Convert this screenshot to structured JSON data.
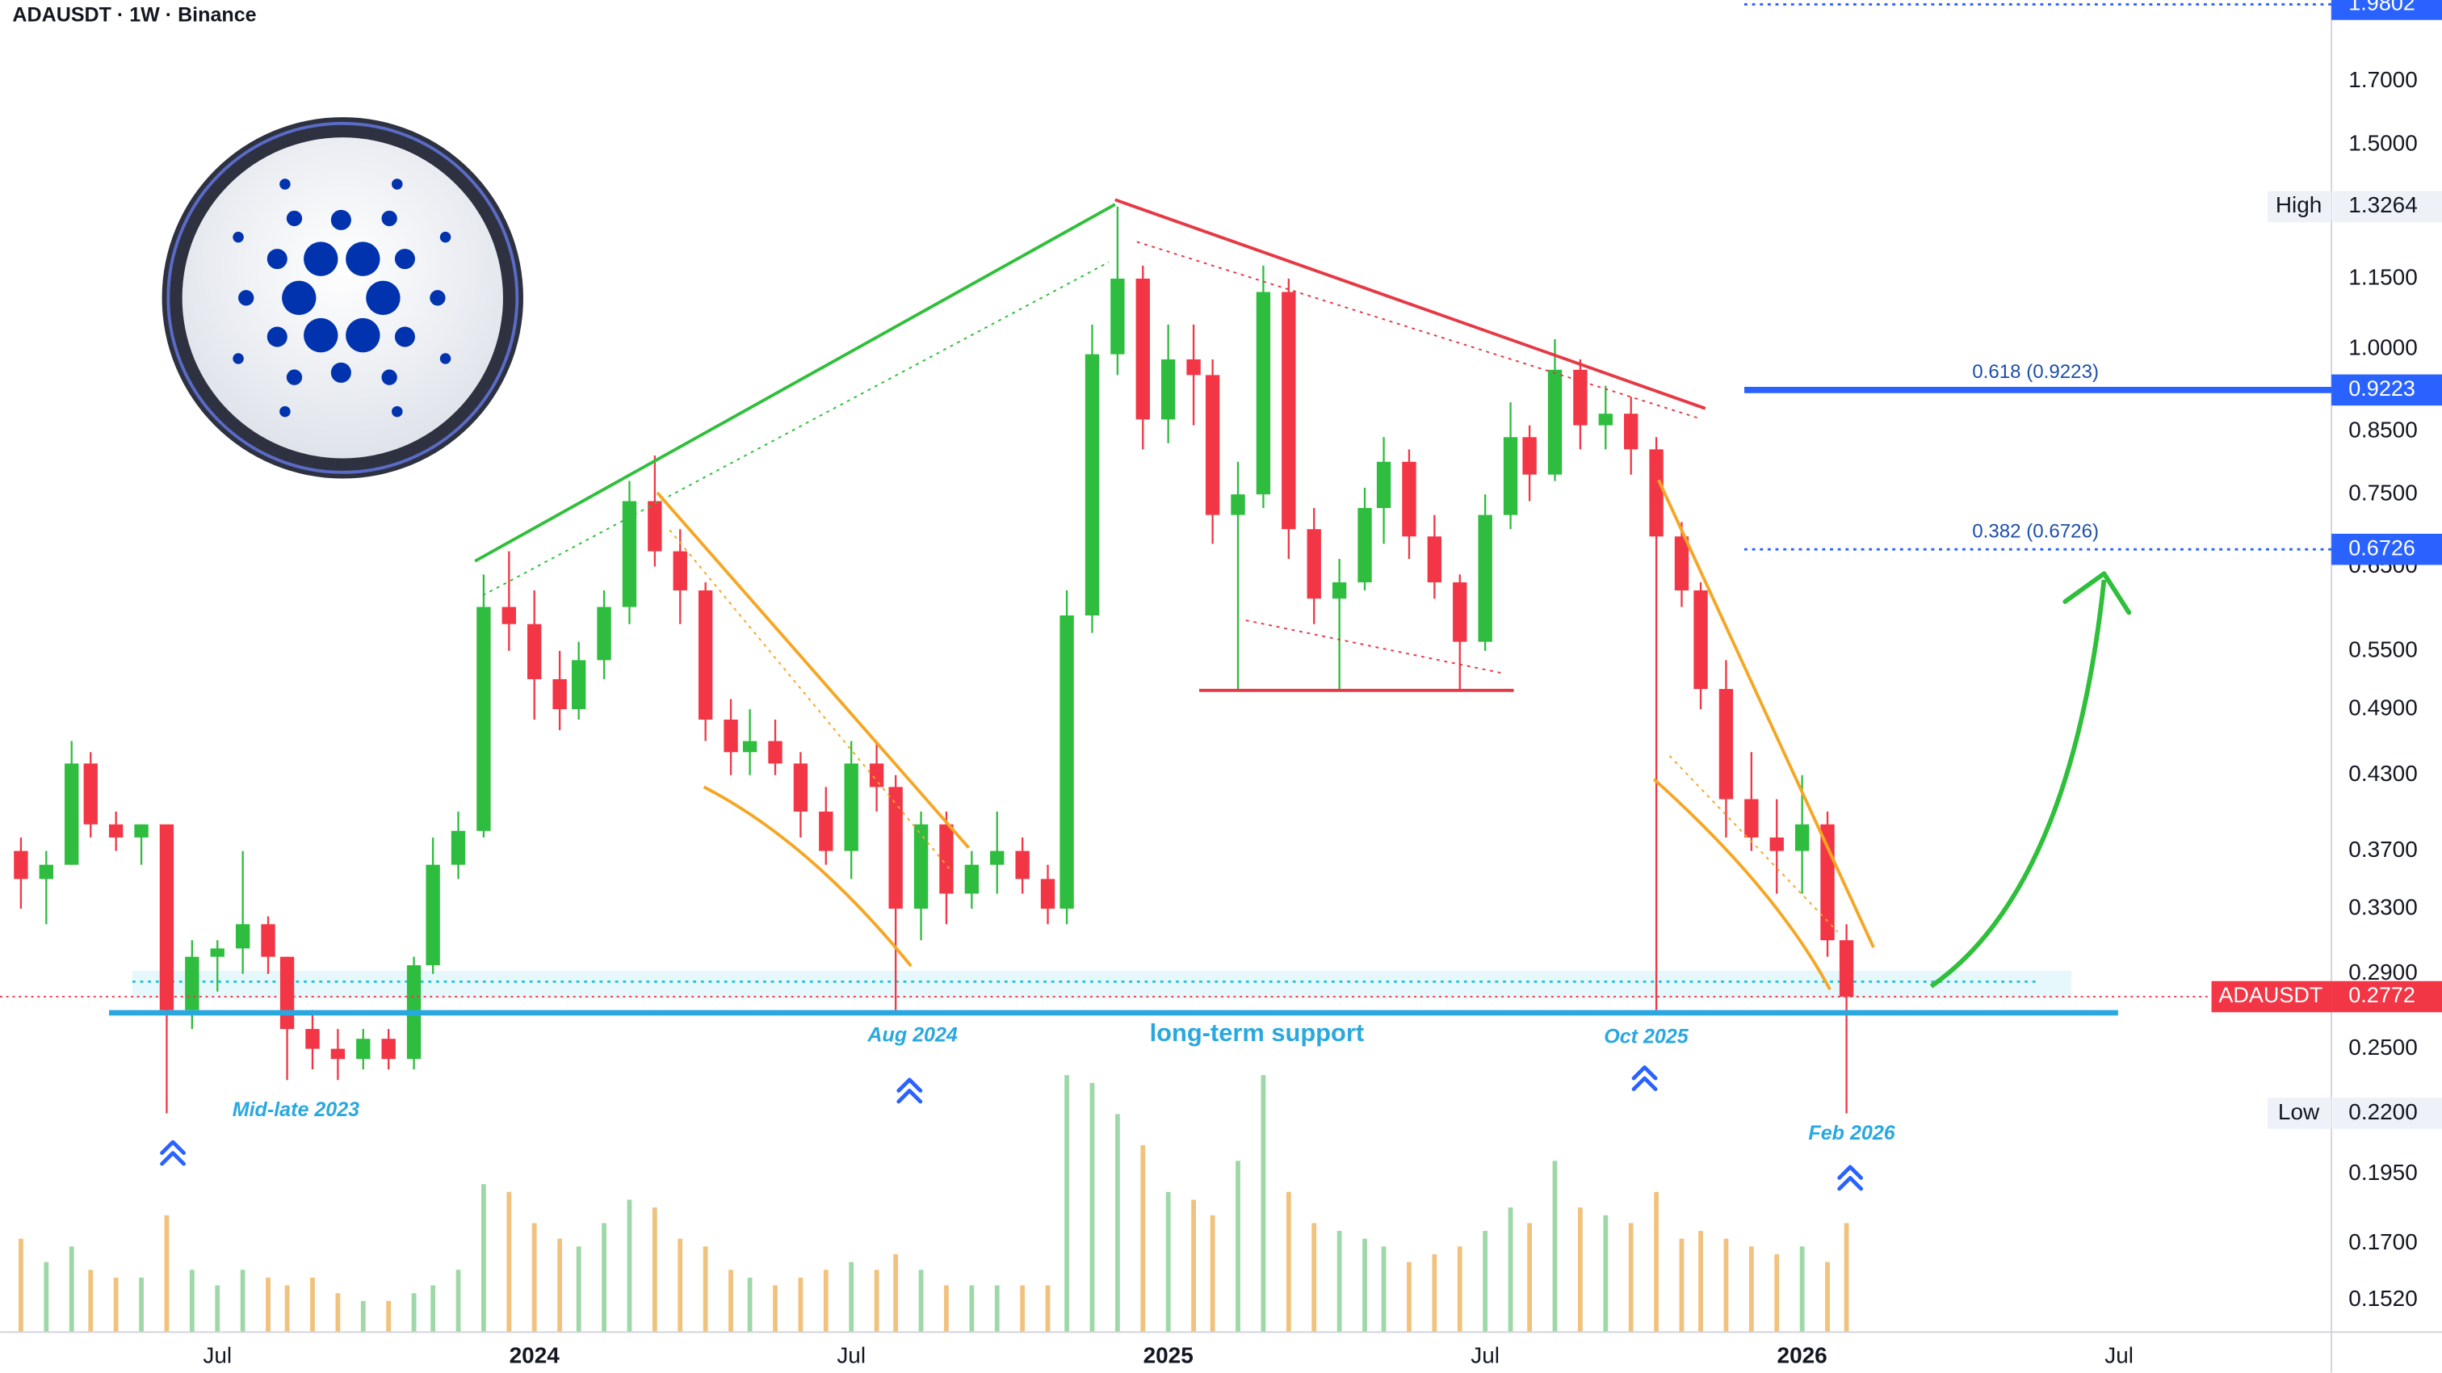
{
  "chart_data": {
    "type": "candlestick",
    "title": "ADAUSDT · 1W · Binance",
    "x": [
      2023.19,
      2023.23,
      2023.27,
      2023.3,
      2023.34,
      2023.38,
      2023.42,
      2023.46,
      2023.5,
      2023.54,
      2023.58,
      2023.61,
      2023.65,
      2023.69,
      2023.73,
      2023.77,
      2023.81,
      2023.84,
      2023.88,
      2023.92,
      2023.96,
      2024.0,
      2024.04,
      2024.07,
      2024.11,
      2024.15,
      2024.19,
      2024.23,
      2024.27,
      2024.31,
      2024.34,
      2024.38,
      2024.42,
      2024.46,
      2024.5,
      2024.54,
      2024.57,
      2024.61,
      2024.65,
      2024.69,
      2024.73,
      2024.77,
      2024.81,
      2024.84,
      2024.88,
      2024.92,
      2024.96,
      2025.0,
      2025.04,
      2025.07,
      2025.11,
      2025.15,
      2025.19,
      2025.23,
      2025.27,
      2025.31,
      2025.34,
      2025.38,
      2025.42,
      2025.46,
      2025.5,
      2025.54,
      2025.57,
      2025.61,
      2025.65,
      2025.69,
      2025.73,
      2025.77,
      2025.81,
      2025.84,
      2025.88,
      2025.92,
      2025.96,
      2026.0,
      2026.04,
      2026.07
    ],
    "open": [
      0.37,
      0.35,
      0.36,
      0.44,
      0.39,
      0.38,
      0.39,
      0.27,
      0.3,
      0.305,
      0.32,
      0.3,
      0.26,
      0.25,
      0.245,
      0.255,
      0.245,
      0.295,
      0.36,
      0.385,
      0.6,
      0.58,
      0.52,
      0.49,
      0.54,
      0.6,
      0.74,
      0.67,
      0.62,
      0.48,
      0.45,
      0.46,
      0.44,
      0.4,
      0.37,
      0.44,
      0.42,
      0.33,
      0.39,
      0.34,
      0.36,
      0.37,
      0.35,
      0.33,
      0.59,
      0.99,
      1.15,
      0.87,
      0.98,
      0.95,
      0.72,
      0.75,
      1.12,
      0.7,
      0.61,
      0.63,
      0.73,
      0.8,
      0.69,
      0.63,
      0.56,
      0.72,
      0.84,
      0.78,
      0.96,
      0.86,
      0.88,
      0.82,
      0.69,
      0.62,
      0.51,
      0.41,
      0.38,
      0.37,
      0.39,
      0.31
    ],
    "high": [
      0.38,
      0.37,
      0.46,
      0.45,
      0.4,
      0.39,
      0.39,
      0.31,
      0.31,
      0.37,
      0.325,
      0.3,
      0.27,
      0.26,
      0.26,
      0.26,
      0.3,
      0.38,
      0.4,
      0.64,
      0.67,
      0.62,
      0.55,
      0.56,
      0.62,
      0.77,
      0.81,
      0.7,
      0.63,
      0.5,
      0.49,
      0.48,
      0.45,
      0.42,
      0.46,
      0.46,
      0.43,
      0.4,
      0.4,
      0.37,
      0.4,
      0.38,
      0.36,
      0.62,
      1.05,
      1.3264,
      1.18,
      1.05,
      1.05,
      0.98,
      0.8,
      1.18,
      1.15,
      0.73,
      0.66,
      0.76,
      0.84,
      0.82,
      0.72,
      0.64,
      0.75,
      0.9,
      0.86,
      1.02,
      0.98,
      0.93,
      0.91,
      0.84,
      0.71,
      0.63,
      0.54,
      0.45,
      0.41,
      0.43,
      0.4,
      0.32
    ],
    "low": [
      0.33,
      0.32,
      0.36,
      0.38,
      0.37,
      0.36,
      0.22,
      0.26,
      0.28,
      0.29,
      0.29,
      0.235,
      0.24,
      0.235,
      0.24,
      0.24,
      0.24,
      0.29,
      0.35,
      0.38,
      0.55,
      0.48,
      0.47,
      0.48,
      0.52,
      0.58,
      0.65,
      0.58,
      0.46,
      0.43,
      0.43,
      0.43,
      0.38,
      0.36,
      0.35,
      0.4,
      0.27,
      0.31,
      0.32,
      0.33,
      0.34,
      0.34,
      0.32,
      0.32,
      0.57,
      0.95,
      0.82,
      0.83,
      0.86,
      0.68,
      0.51,
      0.73,
      0.66,
      0.58,
      0.51,
      0.62,
      0.68,
      0.66,
      0.61,
      0.51,
      0.55,
      0.7,
      0.74,
      0.77,
      0.82,
      0.82,
      0.78,
      0.27,
      0.6,
      0.49,
      0.38,
      0.37,
      0.34,
      0.34,
      0.3,
      0.22
    ],
    "close": [
      0.35,
      0.36,
      0.44,
      0.39,
      0.38,
      0.39,
      0.27,
      0.3,
      0.305,
      0.32,
      0.3,
      0.26,
      0.25,
      0.245,
      0.255,
      0.245,
      0.295,
      0.36,
      0.385,
      0.6,
      0.58,
      0.52,
      0.49,
      0.54,
      0.6,
      0.74,
      0.67,
      0.62,
      0.48,
      0.45,
      0.46,
      0.44,
      0.4,
      0.37,
      0.44,
      0.42,
      0.33,
      0.39,
      0.34,
      0.36,
      0.37,
      0.35,
      0.33,
      0.59,
      0.99,
      1.15,
      0.87,
      0.98,
      0.95,
      0.72,
      0.75,
      1.12,
      0.7,
      0.61,
      0.63,
      0.73,
      0.8,
      0.69,
      0.63,
      0.56,
      0.72,
      0.84,
      0.78,
      0.96,
      0.86,
      0.88,
      0.82,
      0.69,
      0.62,
      0.51,
      0.41,
      0.38,
      0.37,
      0.39,
      0.31,
      0.2772
    ],
    "volume": [
      60,
      45,
      55,
      40,
      35,
      35,
      75,
      40,
      30,
      40,
      35,
      30,
      35,
      25,
      20,
      20,
      25,
      30,
      40,
      95,
      90,
      70,
      60,
      55,
      70,
      85,
      80,
      60,
      55,
      40,
      35,
      30,
      35,
      40,
      45,
      40,
      50,
      40,
      30,
      30,
      30,
      30,
      30,
      165,
      160,
      140,
      120,
      90,
      85,
      75,
      110,
      165,
      90,
      70,
      65,
      60,
      55,
      45,
      50,
      55,
      65,
      80,
      70,
      110,
      80,
      75,
      70,
      90,
      60,
      65,
      60,
      55,
      50,
      55,
      45,
      70
    ],
    "vlim": [
      0,
      200
    ],
    "log_y": true,
    "grid": false,
    "xlim": [
      2023.157,
      2026.835
    ],
    "xticks": [
      {
        "value": 2023.5,
        "label": "Jul"
      },
      2024,
      {
        "value": 2024.5,
        "label": "Jul"
      },
      2025,
      {
        "value": 2025.5,
        "label": "Jul"
      },
      2026,
      {
        "value": 2026.5,
        "label": "Jul"
      }
    ],
    "ylim": [
      0.1426,
      1.996
    ],
    "yticks": [
      {
        "value": 1.7,
        "label": "1.7000"
      },
      {
        "value": 1.5,
        "label": "1.5000"
      },
      {
        "value": 1.15,
        "label": "1.1500"
      },
      {
        "value": 1.0,
        "label": "1.0000"
      },
      {
        "value": 0.85,
        "label": "0.8500"
      },
      {
        "value": 0.75,
        "label": "0.7500"
      },
      {
        "value": 0.65,
        "label": "0.6500"
      },
      {
        "value": 0.55,
        "label": "0.5500"
      },
      {
        "value": 0.49,
        "label": "0.4900"
      },
      {
        "value": 0.43,
        "label": "0.4300"
      },
      {
        "value": 0.37,
        "label": "0.3700"
      },
      {
        "value": 0.33,
        "label": "0.3300"
      },
      {
        "value": 0.29,
        "label": "0.2900"
      },
      {
        "value": 0.25,
        "label": "0.2500"
      },
      {
        "value": 0.195,
        "label": "0.1950"
      },
      {
        "value": 0.17,
        "label": "0.1700"
      },
      {
        "value": 0.152,
        "label": "0.1520"
      }
    ],
    "colors": {
      "up": "#2ebd3f",
      "down": "#f23645",
      "vol_up": "#9fd8a8",
      "vol_down": "#f1c27d",
      "level": "#2962ff"
    },
    "levels": [
      {
        "value": 1.9802,
        "style": "dotted"
      },
      {
        "label": "0.618 (0.9223)",
        "value": 0.9223,
        "style": "solid"
      },
      {
        "label": "0.382 (0.6726)",
        "value": 0.6726,
        "style": "dotted"
      }
    ],
    "last_price": {
      "text": "ADAUSDT",
      "value": 0.2772,
      "color": "#f23645"
    },
    "high_marker": {
      "text": "High",
      "value": 1.3264
    },
    "low_marker": {
      "text": "Low",
      "value": 0.22,
      "label": "0.2200"
    },
    "annotations": [
      "Mid-late 2023",
      "Aug 2024",
      "long-term support",
      "Oct 2025",
      "Feb 2026"
    ]
  }
}
